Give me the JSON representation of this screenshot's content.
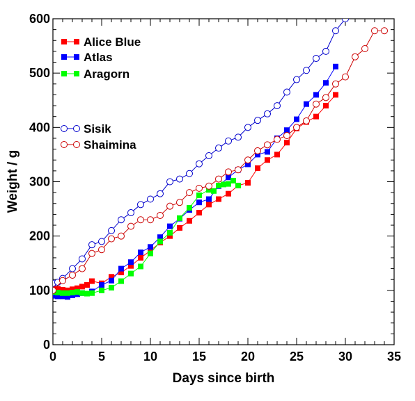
{
  "chart_data": {
    "type": "scatter",
    "title": "",
    "xlabel": "Days since birth",
    "ylabel": "Weight / g",
    "xlim": [
      0,
      35
    ],
    "ylim": [
      0,
      600
    ],
    "x_ticks": [
      "0",
      "5",
      "10",
      "15",
      "20",
      "25",
      "30",
      "35"
    ],
    "y_ticks": [
      "0",
      "100",
      "200",
      "300",
      "400",
      "500",
      "600"
    ],
    "grid": false,
    "legend_position": "top-left",
    "series": [
      {
        "name": "Alice Blue",
        "color": "#ff0000",
        "marker": "filled-square",
        "connected": true,
        "x": [
          0,
          0.5,
          1,
          1.5,
          2,
          2.5,
          3,
          3.5,
          4,
          5,
          6,
          7,
          8,
          9,
          10,
          11,
          12,
          13,
          14,
          15,
          16,
          17,
          18,
          19,
          20,
          21,
          22,
          23,
          24,
          25,
          26,
          27,
          28,
          29
        ],
        "y": [
          105,
          103,
          101,
          100,
          102,
          104,
          107,
          110,
          117,
          113,
          125,
          133,
          145,
          160,
          173,
          188,
          200,
          215,
          228,
          243,
          258,
          268,
          278,
          293,
          298,
          325,
          340,
          350,
          372,
          398,
          410,
          420,
          440,
          460
        ]
      },
      {
        "name": "Atlas",
        "color": "#0000ff",
        "marker": "filled-square",
        "connected": true,
        "x": [
          0,
          0.5,
          1,
          1.5,
          2,
          2.5,
          3,
          4,
          5,
          6,
          7,
          8,
          9,
          10,
          11,
          12,
          13,
          14,
          15,
          16,
          17,
          18,
          19,
          20,
          21,
          22,
          23,
          24,
          25,
          26,
          27,
          28,
          29
        ],
        "y": [
          90,
          89,
          89,
          88,
          91,
          93,
          95,
          98,
          110,
          118,
          140,
          152,
          170,
          180,
          198,
          218,
          232,
          248,
          262,
          268,
          292,
          308,
          322,
          332,
          350,
          355,
          380,
          395,
          415,
          443,
          460,
          482,
          512
        ]
      },
      {
        "name": "Aragorn",
        "color": "#00ff00",
        "marker": "filled-square",
        "connected": true,
        "x": [
          0,
          0.5,
          1,
          1.5,
          2,
          2.5,
          3,
          3.5,
          4,
          5,
          6,
          7,
          8,
          9,
          10,
          11,
          12,
          13,
          14,
          15,
          16,
          16.5,
          17,
          17.5,
          18,
          18.5,
          19
        ],
        "y": [
          97,
          96,
          95,
          95,
          96,
          97,
          95,
          94,
          95,
          100,
          105,
          117,
          131,
          144,
          168,
          190,
          206,
          233,
          252,
          275,
          285,
          283,
          293,
          295,
          296,
          302,
          293
        ]
      },
      {
        "name": "Sisik",
        "color": "#0000cc",
        "marker": "open-circle",
        "connected": true,
        "x": [
          0,
          0.5,
          1,
          2,
          3,
          4,
          5,
          6,
          7,
          8,
          9,
          10,
          11,
          12,
          13,
          14,
          15,
          16,
          17,
          18,
          19,
          20,
          21,
          22,
          23,
          24,
          25,
          26,
          27,
          28,
          29,
          30
        ],
        "y": [
          113,
          115,
          122,
          140,
          158,
          184,
          190,
          210,
          230,
          243,
          258,
          268,
          278,
          300,
          305,
          315,
          333,
          348,
          362,
          375,
          382,
          400,
          413,
          425,
          440,
          465,
          488,
          505,
          527,
          540,
          578,
          600
        ]
      },
      {
        "name": "Shaimina",
        "color": "#cc0000",
        "marker": "open-circle",
        "connected": true,
        "x": [
          0,
          1,
          2,
          3,
          4,
          5,
          6,
          7,
          8,
          9,
          10,
          11,
          12,
          13,
          14,
          15,
          16,
          17,
          18,
          19,
          20,
          21,
          22,
          23,
          24,
          25,
          26,
          27,
          28,
          29,
          30,
          31,
          32,
          33,
          34
        ],
        "y": [
          100,
          118,
          128,
          140,
          168,
          175,
          195,
          200,
          218,
          230,
          230,
          238,
          255,
          262,
          280,
          288,
          292,
          305,
          318,
          322,
          340,
          357,
          368,
          378,
          385,
          400,
          412,
          443,
          455,
          480,
          493,
          530,
          545,
          578,
          578
        ]
      }
    ]
  }
}
